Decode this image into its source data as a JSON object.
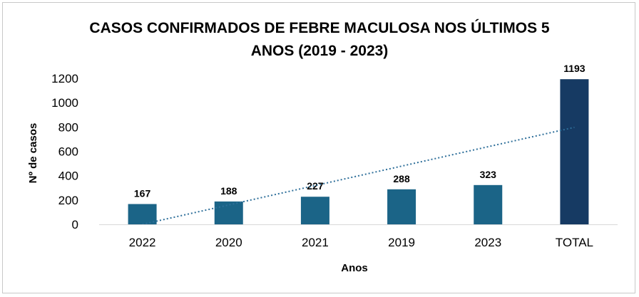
{
  "chart_data": {
    "type": "bar",
    "title_lines": [
      "CASOS CONFIRMADOS DE FEBRE MACULOSA NOS ÚLTIMOS 5",
      "ANOS (2019 - 2023)"
    ],
    "xlabel": "Anos",
    "ylabel": "Nº de casos",
    "categories": [
      "2022",
      "2020",
      "2021",
      "2019",
      "2023",
      "TOTAL"
    ],
    "values": [
      167,
      188,
      227,
      288,
      323,
      1193
    ],
    "data_labels": [
      "167",
      "188",
      "227",
      "288",
      "323",
      "1193"
    ],
    "yticks": [
      "0",
      "200",
      "400",
      "600",
      "800",
      "1000",
      "1200"
    ],
    "ylim": [
      0,
      1200
    ],
    "grid": false,
    "trendline": {
      "type": "linear",
      "style": "dotted",
      "categories": [
        "2022",
        "TOTAL"
      ]
    },
    "colors": {
      "bar": "#1b6487",
      "total_bar": "#163a63",
      "trendline": "#2e6f9a"
    }
  }
}
